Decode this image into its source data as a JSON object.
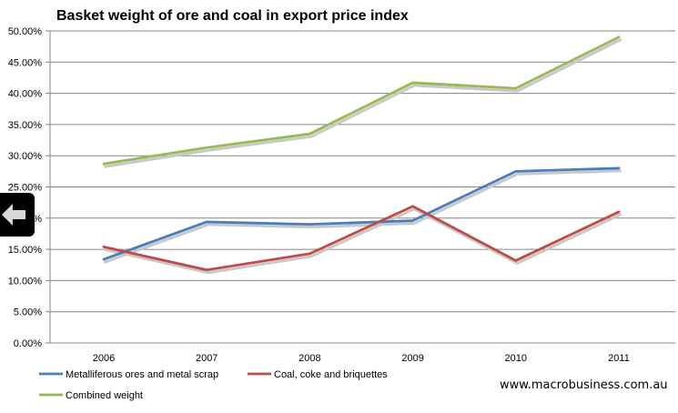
{
  "chart_data": {
    "type": "line",
    "title": "Basket weight of ore and coal in export price index",
    "xlabel": "",
    "ylabel": "",
    "categories": [
      "2006",
      "2007",
      "2008",
      "2009",
      "2010",
      "2011"
    ],
    "ylim": [
      0,
      0.5
    ],
    "yticks": [
      "0.00%",
      "5.00%",
      "10.00%",
      "15.00%",
      "20.00%",
      "25.00%",
      "30.00%",
      "35.00%",
      "40.00%",
      "45.00%",
      "50.00%"
    ],
    "grid": true,
    "legend_position": "bottom-left",
    "series": [
      {
        "name": "Metalliferous ores and metal scrap",
        "color": "#4a7ebb",
        "values": [
          0.134,
          0.194,
          0.19,
          0.196,
          0.275,
          0.28
        ]
      },
      {
        "name": "Coal, coke and briquettes",
        "color": "#be4b48",
        "values": [
          0.154,
          0.117,
          0.143,
          0.219,
          0.132,
          0.21
        ]
      },
      {
        "name": "Combined weight",
        "color": "#98b954",
        "values": [
          0.287,
          0.313,
          0.335,
          0.417,
          0.408,
          0.49
        ]
      }
    ]
  },
  "source_text": "www.macrobusiness.com.au",
  "nav": {
    "back_icon": "left-arrow-icon"
  }
}
